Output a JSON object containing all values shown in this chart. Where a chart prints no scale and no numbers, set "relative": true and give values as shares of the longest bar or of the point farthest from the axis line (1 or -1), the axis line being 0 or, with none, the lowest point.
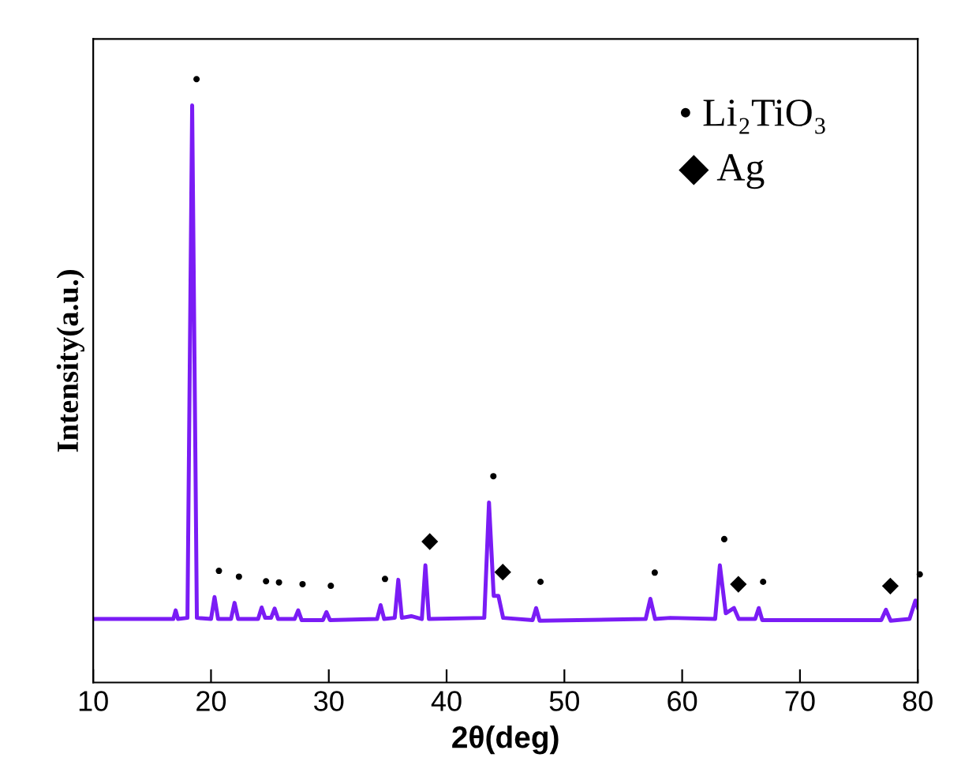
{
  "chart_data": {
    "type": "line",
    "relative": true,
    "xlabel": "2θ(deg)",
    "ylabel": "Intensity(a.u.)",
    "xlim": [
      10,
      80
    ],
    "xticks": [
      10,
      20,
      30,
      40,
      50,
      60,
      70,
      80
    ],
    "grid": false,
    "legend": false,
    "marker": "none",
    "line_style": "solid",
    "series": [
      {
        "color": "#7a1cf5",
        "x": [
          10,
          16.8,
          17.0,
          17.2,
          18.0,
          18.4,
          18.8,
          20.0,
          20.3,
          20.6,
          21.7,
          22.0,
          22.3,
          24.0,
          24.3,
          24.6,
          25.1,
          25.4,
          25.7,
          27.1,
          27.4,
          27.7,
          29.5,
          29.8,
          30.1,
          34.1,
          34.4,
          34.7,
          35.6,
          35.9,
          36.2,
          37.0,
          37.9,
          38.2,
          38.5,
          43.2,
          43.6,
          44.0,
          44.4,
          44.8,
          47.3,
          47.6,
          47.9,
          56.9,
          57.3,
          57.7,
          59.0,
          62.8,
          63.2,
          63.7,
          64.4,
          64.8,
          66.2,
          66.5,
          66.8,
          76.9,
          77.3,
          77.7,
          79.3,
          79.8,
          80
        ],
        "values": [
          0.11,
          0.11,
          0.125,
          0.11,
          0.112,
          1.0,
          0.112,
          0.11,
          0.148,
          0.11,
          0.11,
          0.138,
          0.11,
          0.11,
          0.13,
          0.112,
          0.112,
          0.128,
          0.11,
          0.11,
          0.125,
          0.108,
          0.108,
          0.122,
          0.108,
          0.11,
          0.134,
          0.11,
          0.112,
          0.178,
          0.112,
          0.115,
          0.11,
          0.203,
          0.11,
          0.112,
          0.312,
          0.15,
          0.15,
          0.112,
          0.108,
          0.129,
          0.107,
          0.11,
          0.145,
          0.11,
          0.112,
          0.11,
          0.203,
          0.12,
          0.129,
          0.11,
          0.11,
          0.129,
          0.108,
          0.108,
          0.126,
          0.107,
          0.11,
          0.142,
          0.13
        ]
      }
    ],
    "annotations": [
      "• Li₂TiO₃",
      "◆ Ag",
      {
        "text": "•",
        "x": 18.4,
        "y": 1.0
      },
      {
        "text": "•",
        "x": 20.3,
        "y": 0.148
      },
      {
        "text": "•",
        "x": 22.0,
        "y": 0.138
      },
      {
        "text": "•",
        "x": 24.3,
        "y": 0.13
      },
      {
        "text": "•",
        "x": 25.4,
        "y": 0.128
      },
      {
        "text": "•",
        "x": 27.4,
        "y": 0.125
      },
      {
        "text": "•",
        "x": 29.8,
        "y": 0.122
      },
      {
        "text": "•",
        "x": 34.4,
        "y": 0.134
      },
      {
        "text": "◆",
        "x": 38.2,
        "y": 0.203
      },
      {
        "text": "•",
        "x": 43.6,
        "y": 0.312
      },
      {
        "text": "◆",
        "x": 44.4,
        "y": 0.15
      },
      {
        "text": "•",
        "x": 47.6,
        "y": 0.129
      },
      {
        "text": "•",
        "x": 57.3,
        "y": 0.145
      },
      {
        "text": "•",
        "x": 63.2,
        "y": 0.203
      },
      {
        "text": "◆",
        "x": 64.4,
        "y": 0.129
      },
      {
        "text": "•",
        "x": 66.5,
        "y": 0.129
      },
      {
        "text": "◆",
        "x": 77.3,
        "y": 0.126
      },
      {
        "text": "•",
        "x": 79.8,
        "y": 0.142
      }
    ]
  }
}
